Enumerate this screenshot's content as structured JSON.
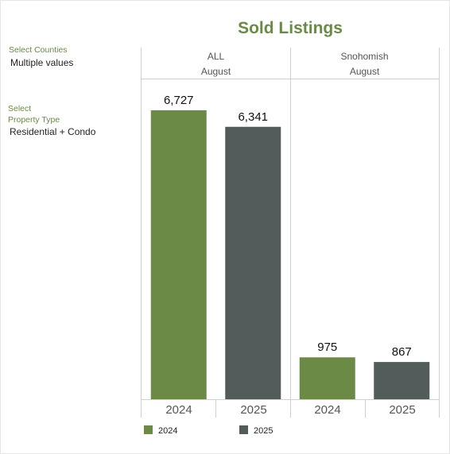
{
  "title": "Sold Listings",
  "filters": {
    "counties": {
      "label": "Select Counties",
      "value": "Multiple values"
    },
    "property_type": {
      "label_line1": "Select",
      "label_line2": "Property Type",
      "value": "Residential + Condo"
    }
  },
  "colors": {
    "accent": "#6a8a46",
    "series_2024": "#6a8a46",
    "series_2025": "#525c5a"
  },
  "chart_data": {
    "type": "bar",
    "title": "Sold Listings",
    "panels": [
      {
        "region": "ALL",
        "month": "August",
        "categories": [
          "2024",
          "2025"
        ],
        "values": [
          6727,
          6341
        ],
        "labels": [
          "6,727",
          "6,341"
        ]
      },
      {
        "region": "Snohomish",
        "month": "August",
        "categories": [
          "2024",
          "2025"
        ],
        "values": [
          975,
          867
        ],
        "labels": [
          "975",
          "867"
        ]
      }
    ],
    "ylim": [
      0,
      7390
    ],
    "legend": {
      "placement": "bottom-left",
      "entries": [
        {
          "name": "2024",
          "color": "#6a8a46"
        },
        {
          "name": "2025",
          "color": "#525c5a"
        }
      ]
    },
    "grid": false
  }
}
